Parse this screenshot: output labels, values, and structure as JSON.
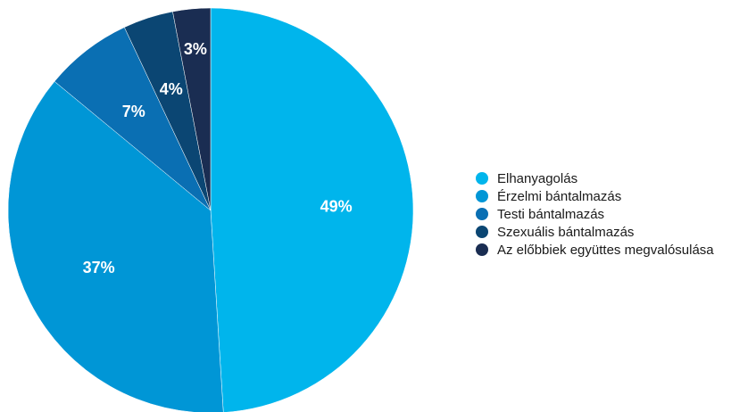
{
  "chart_data": {
    "type": "pie",
    "start_angle": "12 o'clock",
    "direction": "clockwise",
    "slices": [
      {
        "label": "Elhanyagolás",
        "value": 49,
        "display": "49%",
        "color": "#00b5ec"
      },
      {
        "label": "Érzelmi bántalmazás",
        "value": 37,
        "display": "37%",
        "color": "#0096d6"
      },
      {
        "label": "Testi bántalmazás",
        "value": 7,
        "display": "7%",
        "color": "#0a6fb3"
      },
      {
        "label": "Szexuális bántalmazás",
        "value": 4,
        "display": "4%",
        "color": "#0b4673"
      },
      {
        "label": "Az előbbiek együttes megvalósulása",
        "value": 3,
        "display": "3%",
        "color": "#1a2d52"
      }
    ],
    "legend_position": "right"
  }
}
